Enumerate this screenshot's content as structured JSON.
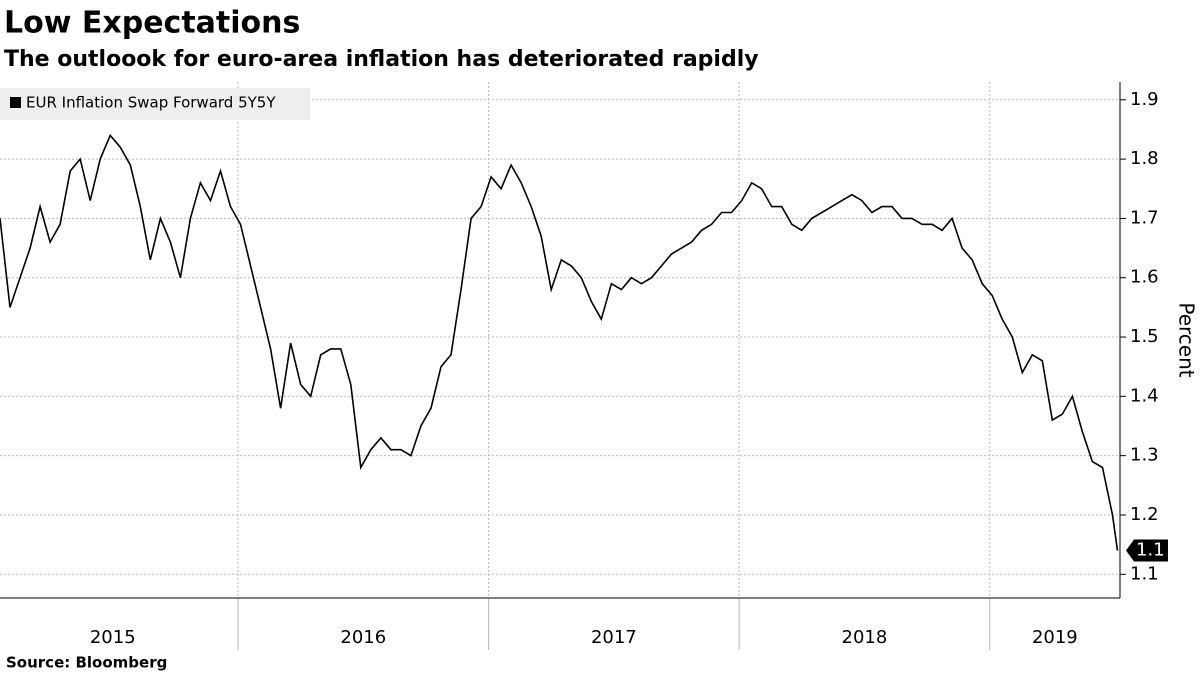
{
  "chart_data": {
    "type": "line",
    "title": "Low Expectations",
    "subtitle": "The outloook for euro-area inflation has deteriorated rapidly",
    "source": "Source: Bloomberg",
    "y_axis_label": "Percent",
    "x": [
      2015.05,
      2015.09,
      2015.13,
      2015.17,
      2015.21,
      2015.25,
      2015.29,
      2015.33,
      2015.37,
      2015.41,
      2015.45,
      2015.49,
      2015.53,
      2015.57,
      2015.61,
      2015.65,
      2015.69,
      2015.73,
      2015.77,
      2015.81,
      2015.85,
      2015.89,
      2015.93,
      2015.97,
      2016.01,
      2016.05,
      2016.09,
      2016.13,
      2016.17,
      2016.21,
      2016.25,
      2016.29,
      2016.33,
      2016.37,
      2016.41,
      2016.45,
      2016.49,
      2016.53,
      2016.57,
      2016.61,
      2016.65,
      2016.69,
      2016.73,
      2016.77,
      2016.81,
      2016.85,
      2016.89,
      2016.93,
      2016.97,
      2017.01,
      2017.05,
      2017.09,
      2017.13,
      2017.17,
      2017.21,
      2017.25,
      2017.29,
      2017.33,
      2017.37,
      2017.41,
      2017.45,
      2017.49,
      2017.53,
      2017.57,
      2017.61,
      2017.65,
      2017.69,
      2017.73,
      2017.77,
      2017.81,
      2017.85,
      2017.89,
      2017.93,
      2017.97,
      2018.01,
      2018.05,
      2018.09,
      2018.13,
      2018.17,
      2018.21,
      2018.25,
      2018.29,
      2018.33,
      2018.37,
      2018.41,
      2018.45,
      2018.49,
      2018.53,
      2018.57,
      2018.61,
      2018.65,
      2018.69,
      2018.73,
      2018.77,
      2018.81,
      2018.85,
      2018.89,
      2018.93,
      2018.97,
      2019.01,
      2019.05,
      2019.09,
      2019.13,
      2019.17,
      2019.21,
      2019.25,
      2019.29,
      2019.33,
      2019.37,
      2019.41,
      2019.45,
      2019.49,
      2019.51
    ],
    "series": [
      {
        "name": "EUR Inflation Swap Forward 5Y5Y",
        "color": "#000000",
        "values": [
          1.7,
          1.55,
          1.6,
          1.65,
          1.72,
          1.66,
          1.69,
          1.78,
          1.8,
          1.73,
          1.8,
          1.84,
          1.82,
          1.79,
          1.72,
          1.63,
          1.7,
          1.66,
          1.6,
          1.7,
          1.76,
          1.73,
          1.78,
          1.72,
          1.69,
          1.62,
          1.55,
          1.48,
          1.38,
          1.49,
          1.42,
          1.4,
          1.47,
          1.48,
          1.48,
          1.42,
          1.28,
          1.31,
          1.33,
          1.31,
          1.31,
          1.3,
          1.35,
          1.38,
          1.45,
          1.47,
          1.58,
          1.7,
          1.72,
          1.77,
          1.75,
          1.79,
          1.76,
          1.72,
          1.67,
          1.58,
          1.63,
          1.62,
          1.6,
          1.56,
          1.53,
          1.59,
          1.58,
          1.6,
          1.59,
          1.6,
          1.62,
          1.64,
          1.65,
          1.66,
          1.68,
          1.69,
          1.71,
          1.71,
          1.73,
          1.76,
          1.75,
          1.72,
          1.72,
          1.69,
          1.68,
          1.7,
          1.71,
          1.72,
          1.73,
          1.74,
          1.73,
          1.71,
          1.72,
          1.72,
          1.7,
          1.7,
          1.69,
          1.69,
          1.68,
          1.7,
          1.65,
          1.63,
          1.59,
          1.57,
          1.53,
          1.5,
          1.44,
          1.47,
          1.46,
          1.36,
          1.37,
          1.4,
          1.34,
          1.29,
          1.28,
          1.2,
          1.14
        ],
        "last_value_label": "1.1"
      }
    ],
    "xlim": [
      2015.05,
      2019.52
    ],
    "ylim": [
      1.06,
      1.93
    ],
    "xticks": [
      {
        "value": 2015.5,
        "label": "2015"
      },
      {
        "value": 2016.5,
        "label": "2016"
      },
      {
        "value": 2017.5,
        "label": "2017"
      },
      {
        "value": 2018.5,
        "label": "2018"
      },
      {
        "value": 2019.26,
        "label": "2019"
      }
    ],
    "xgrid": [
      2016,
      2017,
      2018,
      2019
    ],
    "yticks": [
      1.1,
      1.2,
      1.3,
      1.4,
      1.5,
      1.6,
      1.7,
      1.8,
      1.9
    ],
    "grid": true
  }
}
